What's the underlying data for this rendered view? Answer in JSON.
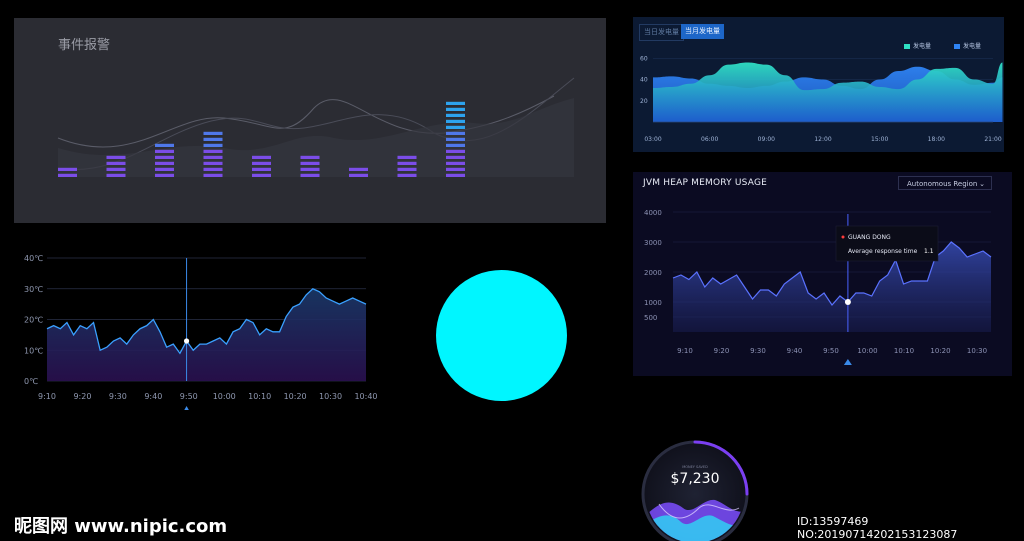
{
  "event_panel": {
    "title": "事件报警",
    "bar_levels": [
      2,
      4,
      6,
      8,
      4,
      4,
      2,
      4,
      13
    ]
  },
  "power_panel": {
    "tabs": [
      "当日发电量",
      "当月发电量"
    ],
    "legend": [
      {
        "label": "发电量",
        "color": "#2fe0c4"
      },
      {
        "label": "发电量",
        "color": "#2f84f5"
      }
    ],
    "chart_data": {
      "type": "area",
      "x": [
        "03:00",
        "06:00",
        "09:00",
        "12:00",
        "15:00",
        "18:00",
        "21:00"
      ],
      "yticks": [
        60,
        40,
        20
      ],
      "ylim": [
        0,
        64
      ],
      "series": [
        {
          "color": "#2fe0c4",
          "x": [
            3,
            4,
            5,
            6,
            7,
            8,
            9,
            10,
            11,
            12,
            13,
            14,
            15,
            16,
            17,
            18,
            19,
            20,
            21,
            21.5
          ],
          "values": [
            32,
            33,
            36,
            44,
            54,
            56,
            54,
            44,
            30,
            31,
            37,
            38,
            33,
            31,
            40,
            50,
            51,
            40,
            36,
            56
          ]
        },
        {
          "color": "#2f84f5",
          "x": [
            3,
            4,
            5,
            6,
            7,
            8,
            9,
            10,
            11,
            12,
            13,
            14,
            15,
            16,
            17,
            18,
            19,
            20,
            21,
            21.5
          ],
          "values": [
            42,
            43,
            41,
            36,
            34,
            32,
            34,
            38,
            42,
            40,
            34,
            31,
            40,
            48,
            52,
            48,
            40,
            35,
            37,
            42
          ]
        }
      ]
    }
  },
  "temp_panel": {
    "chart_data": {
      "type": "line",
      "yticks": [
        "40℃",
        "30℃",
        "20℃",
        "10℃",
        "0℃"
      ],
      "ylim": [
        0,
        40
      ],
      "xticks": [
        "9:10",
        "9:20",
        "9:30",
        "9:40",
        "9:50",
        "10:00",
        "10:10",
        "10:20",
        "10:30",
        "10:40"
      ],
      "values": [
        17,
        18,
        17,
        19,
        15,
        18,
        17,
        19,
        10,
        11,
        13,
        14,
        12,
        15,
        17,
        18,
        20,
        16,
        11,
        12,
        9,
        13,
        10,
        12,
        12,
        13,
        14,
        12,
        16,
        17,
        20,
        19,
        15,
        17,
        16,
        16,
        21,
        24,
        25,
        28,
        30,
        29,
        27,
        26,
        25,
        26,
        27,
        26,
        25
      ],
      "cursor_index": 21
    }
  },
  "jvm_panel": {
    "title": "JVM HEAP MEMORY USAGE",
    "region": "Autonomous Region",
    "tooltip": {
      "name": "GUANG DONG",
      "metric": "Average response time",
      "value": "1.1"
    },
    "chart_data": {
      "type": "area",
      "yticks": [
        4000,
        3000,
        2000,
        1000,
        500
      ],
      "ylim": [
        0,
        4000
      ],
      "xticks": [
        "9:10",
        "9:20",
        "9:30",
        "9:40",
        "9:50",
        "10:00",
        "10:10",
        "10:20",
        "10:30"
      ],
      "values": [
        1800,
        1900,
        1750,
        2000,
        1500,
        1800,
        1600,
        1750,
        1900,
        1500,
        1100,
        1400,
        1400,
        1200,
        1600,
        1800,
        2000,
        1300,
        1100,
        1300,
        900,
        1200,
        1000,
        1300,
        1300,
        1200,
        1700,
        1900,
        2400,
        1600,
        1700,
        1700,
        1700,
        2500,
        2700,
        3000,
        2800,
        2500,
        2600,
        2700,
        2500
      ],
      "cursor_index": 22
    }
  },
  "gauge": {
    "caption": "MONEY SAVED",
    "value": "$7,230"
  },
  "watermark": {
    "left": "昵图网 www.nipic.com",
    "right": "ID:13597469 NO:20190714202153123087"
  }
}
